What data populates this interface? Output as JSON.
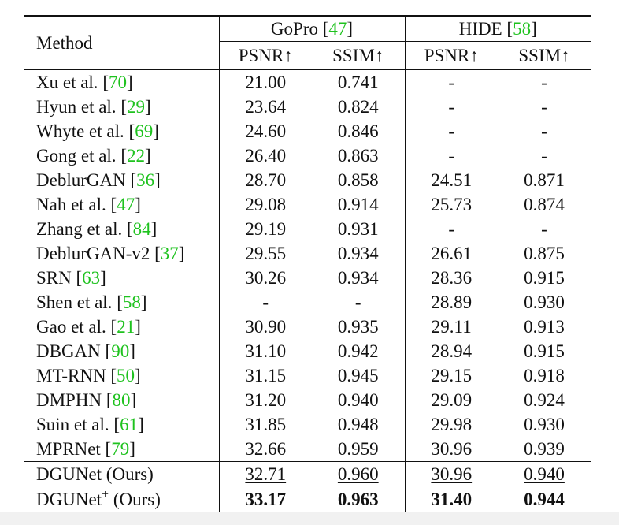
{
  "header": {
    "method": "Method",
    "groups": [
      {
        "name": "GoPro",
        "ref": "47"
      },
      {
        "name": "HIDE",
        "ref": "58"
      }
    ],
    "metrics": [
      "PSNR↑",
      "SSIM↑",
      "PSNR↑",
      "SSIM↑"
    ]
  },
  "rows": [
    {
      "name": "Xu et al.",
      "ref": "70",
      "vals": [
        "21.00",
        "0.741",
        "-",
        "-"
      ]
    },
    {
      "name": "Hyun et al.",
      "ref": "29",
      "vals": [
        "23.64",
        "0.824",
        "-",
        "-"
      ]
    },
    {
      "name": "Whyte et al.",
      "ref": "69",
      "vals": [
        "24.60",
        "0.846",
        "-",
        "-"
      ]
    },
    {
      "name": "Gong et al.",
      "ref": "22",
      "vals": [
        "26.40",
        "0.863",
        "-",
        "-"
      ]
    },
    {
      "name": "DeblurGAN",
      "ref": "36",
      "vals": [
        "28.70",
        "0.858",
        "24.51",
        "0.871"
      ]
    },
    {
      "name": "Nah et al.",
      "ref": "47",
      "vals": [
        "29.08",
        "0.914",
        "25.73",
        "0.874"
      ]
    },
    {
      "name": "Zhang et al.",
      "ref": "84",
      "vals": [
        "29.19",
        "0.931",
        "-",
        "-"
      ]
    },
    {
      "name": "DeblurGAN-v2",
      "ref": "37",
      "vals": [
        "29.55",
        "0.934",
        "26.61",
        "0.875"
      ]
    },
    {
      "name": "SRN",
      "ref": "63",
      "vals": [
        "30.26",
        "0.934",
        "28.36",
        "0.915"
      ]
    },
    {
      "name": "Shen et al.",
      "ref": "58",
      "vals": [
        "-",
        "-",
        "28.89",
        "0.930"
      ]
    },
    {
      "name": "Gao et al.",
      "ref": "21",
      "vals": [
        "30.90",
        "0.935",
        "29.11",
        "0.913"
      ]
    },
    {
      "name": "DBGAN",
      "ref": "90",
      "vals": [
        "31.10",
        "0.942",
        "28.94",
        "0.915"
      ]
    },
    {
      "name": "MT-RNN",
      "ref": "50",
      "vals": [
        "31.15",
        "0.945",
        "29.15",
        "0.918"
      ]
    },
    {
      "name": "DMPHN",
      "ref": "80",
      "vals": [
        "31.20",
        "0.940",
        "29.09",
        "0.924"
      ]
    },
    {
      "name": "Suin et al.",
      "ref": "61",
      "vals": [
        "31.85",
        "0.948",
        "29.98",
        "0.930"
      ]
    },
    {
      "name": "MPRNet",
      "ref": "79",
      "vals": [
        "32.66",
        "0.959",
        "30.96",
        "0.939"
      ]
    }
  ],
  "ours": [
    {
      "name": "DGUNet",
      "sup": "",
      "suffix": "(Ours)",
      "vals": [
        "32.71",
        "0.960",
        "30.96",
        "0.940"
      ],
      "style": "underline"
    },
    {
      "name": "DGUNet",
      "sup": "+",
      "suffix": "(Ours)",
      "vals": [
        "33.17",
        "0.963",
        "31.40",
        "0.944"
      ],
      "style": "bold"
    }
  ]
}
